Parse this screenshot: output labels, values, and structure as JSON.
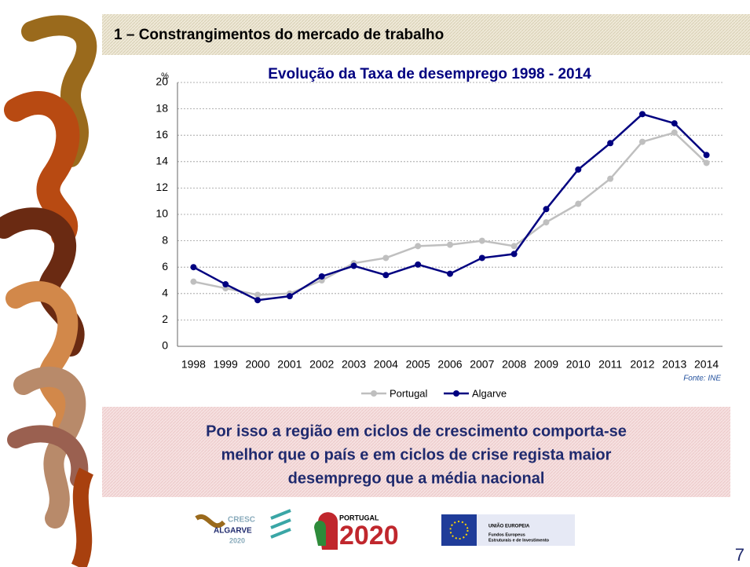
{
  "header": {
    "title": "1 – Constrangimentos do mercado de trabalho"
  },
  "chart_data": {
    "type": "line",
    "title": "Evolução da Taxa de desemprego 1998 - 2014",
    "ylabel": "%",
    "categories": [
      "1998",
      "1999",
      "2000",
      "2001",
      "2002",
      "2003",
      "2004",
      "2005",
      "2006",
      "2007",
      "2008",
      "2009",
      "2010",
      "2011",
      "2012",
      "2013",
      "2014"
    ],
    "series": [
      {
        "name": "Portugal",
        "color": "#bfbfbf",
        "values": [
          4.9,
          4.4,
          3.9,
          4.0,
          5.0,
          6.3,
          6.7,
          7.6,
          7.7,
          8.0,
          7.6,
          9.4,
          10.8,
          12.7,
          15.5,
          16.2,
          13.9
        ]
      },
      {
        "name": "Algarve",
        "color": "#000080",
        "values": [
          6.0,
          4.7,
          3.5,
          3.8,
          5.3,
          6.1,
          5.4,
          6.2,
          5.5,
          6.7,
          7.0,
          10.4,
          13.4,
          15.4,
          17.6,
          16.9,
          14.5
        ]
      }
    ],
    "ylim": [
      0,
      20
    ],
    "yticks": [
      0,
      2,
      4,
      6,
      8,
      10,
      12,
      14,
      16,
      18,
      20
    ],
    "grid": true,
    "legend": "bottom",
    "source": "Fonte: INE"
  },
  "conclusion": {
    "lines": [
      "Por isso a região em ciclos de crescimento comporta-se",
      "melhor que o país e em ciclos de crise regista maior",
      "desemprego que a média nacional"
    ]
  },
  "logos": {
    "cresc": "CRESC",
    "algarve": "ALGARVE",
    "algarve_year": "2020",
    "portugal": "PORTUGAL",
    "portugal_year": "2020",
    "eu": "UNIÃO EUROPEIA",
    "eu_funds": "Fundos Europeus",
    "eu_funds2": "Estruturais e de Investimento"
  },
  "page_number": "7"
}
